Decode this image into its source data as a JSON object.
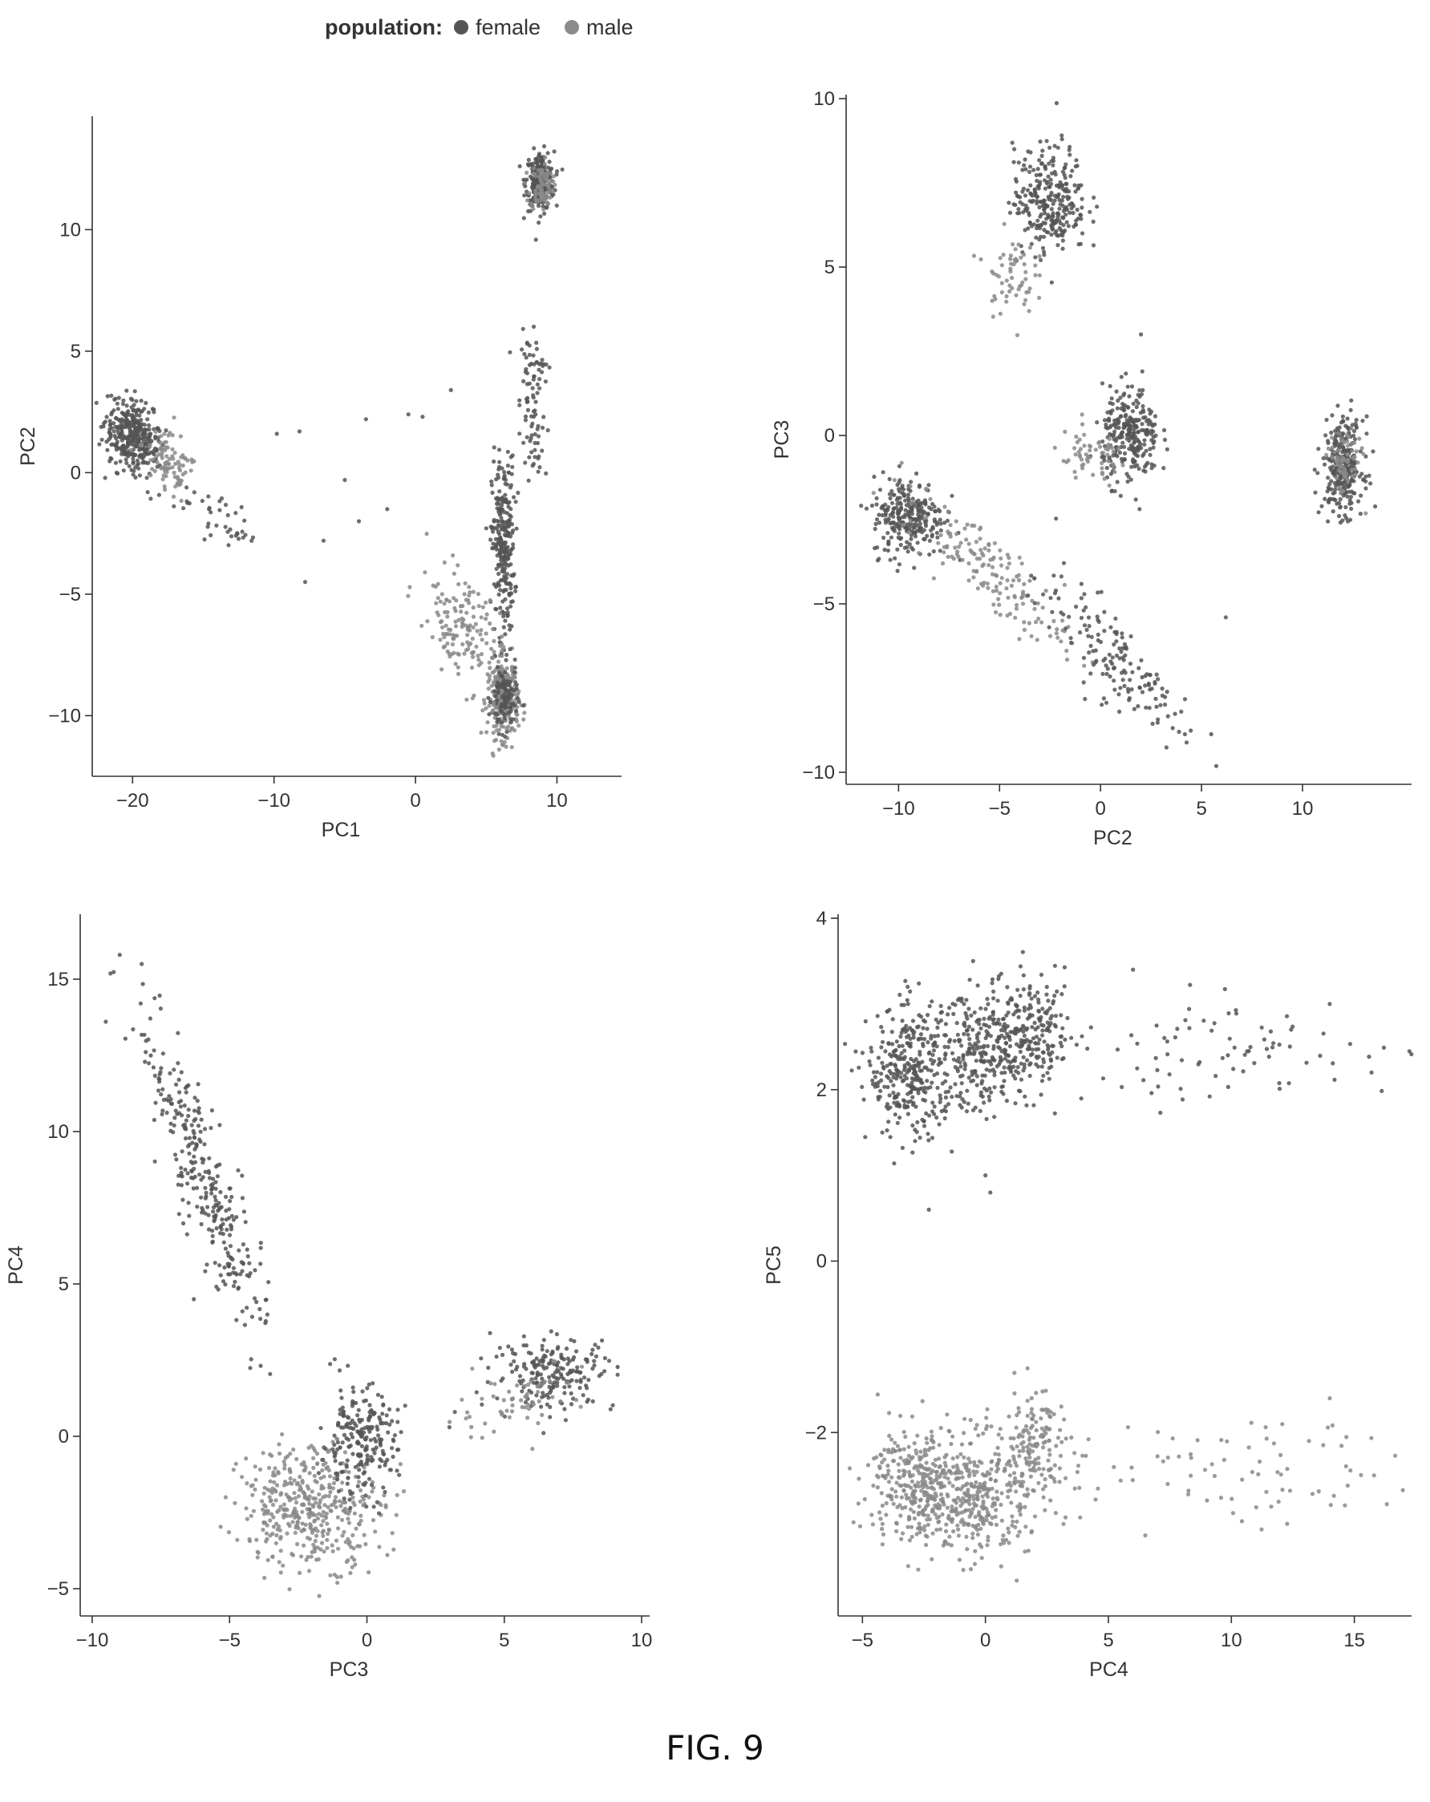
{
  "legend": {
    "title": "population:",
    "entries": [
      {
        "label": "female",
        "color": "#555555"
      },
      {
        "label": "male",
        "color": "#8a8a8a"
      }
    ]
  },
  "caption": "FIG. 9",
  "chart_data": [
    {
      "type": "scatter",
      "xlabel": "PC1",
      "ylabel": "PC2",
      "xlim": [
        -22,
        14
      ],
      "ylim": [
        -12,
        14.5
      ],
      "xticks": [
        -20,
        -10,
        0,
        10
      ],
      "yticks": [
        -10,
        -5,
        0,
        5,
        10
      ],
      "clusters": [
        {
          "series": "female",
          "cx": -20,
          "cy": 1.5,
          "sx": 1.0,
          "sy": 0.7,
          "n": 350,
          "theta": -25
        },
        {
          "series": "male",
          "cx": -17.5,
          "cy": 0.3,
          "sx": 1.0,
          "sy": 0.6,
          "n": 90,
          "theta": -25
        },
        {
          "series": "female",
          "cx": 8.8,
          "cy": 12,
          "sx": 0.5,
          "sy": 0.6,
          "n": 240,
          "theta": 0
        },
        {
          "series": "male",
          "cx": 8.9,
          "cy": 11.8,
          "sx": 0.4,
          "sy": 0.5,
          "n": 80,
          "theta": 0
        },
        {
          "series": "female",
          "cx": 6.2,
          "cy": -3,
          "sx": 0.4,
          "sy": 1.8,
          "n": 260,
          "theta": 0
        },
        {
          "series": "male",
          "cx": 6.2,
          "cy": -9.3,
          "sx": 0.55,
          "sy": 0.8,
          "n": 260,
          "theta": 0
        },
        {
          "series": "female",
          "cx": 6.3,
          "cy": -9.3,
          "sx": 0.45,
          "sy": 0.7,
          "n": 110,
          "theta": 0
        },
        {
          "series": "male",
          "cx": 3.2,
          "cy": -6.2,
          "sx": 1.4,
          "sy": 1.0,
          "n": 150,
          "theta": -40
        },
        {
          "series": "female",
          "cx": 8.2,
          "cy": 2.3,
          "sx": 0.4,
          "sy": 1.8,
          "n": 70,
          "theta": 10
        },
        {
          "series": "female",
          "cx": 8.8,
          "cy": 4.5,
          "sx": 0.3,
          "sy": 0.4,
          "n": 20,
          "theta": 0
        },
        {
          "series": "female",
          "cx": -14,
          "cy": -1.8,
          "sx": 1.5,
          "sy": 0.5,
          "n": 40,
          "theta": -20
        }
      ],
      "extra_points": [
        {
          "series": "female",
          "points": [
            [
              -9.8,
              1.6
            ],
            [
              -8.2,
              1.7
            ],
            [
              -6.5,
              -2.8
            ],
            [
              -7.8,
              -4.5
            ],
            [
              -5,
              -0.3
            ],
            [
              -3.5,
              2.2
            ],
            [
              -0.5,
              2.4
            ],
            [
              0.5,
              2.3
            ],
            [
              -4,
              -2
            ],
            [
              -2,
              -1.5
            ],
            [
              2.5,
              3.4
            ]
          ]
        }
      ]
    },
    {
      "type": "scatter",
      "xlabel": "PC2",
      "ylabel": "PC3",
      "xlim": [
        -12,
        15
      ],
      "ylim": [
        -10,
        10
      ],
      "xticks": [
        -10,
        -5,
        0,
        5,
        10
      ],
      "yticks": [
        -10,
        -5,
        0,
        5,
        10
      ],
      "clusters": [
        {
          "series": "female",
          "cx": -9.5,
          "cy": -2.4,
          "sx": 0.9,
          "sy": 0.6,
          "n": 260,
          "theta": 0
        },
        {
          "series": "male",
          "cx": -5.5,
          "cy": -4,
          "sx": 2.2,
          "sy": 0.5,
          "n": 160,
          "theta": -28
        },
        {
          "series": "female",
          "cx": 0.5,
          "cy": -6.5,
          "sx": 2.2,
          "sy": 0.6,
          "n": 160,
          "theta": -30
        },
        {
          "series": "female",
          "cx": -2.5,
          "cy": 7,
          "sx": 0.9,
          "sy": 0.8,
          "n": 280,
          "theta": 0
        },
        {
          "series": "male",
          "cx": -4.5,
          "cy": 4.8,
          "sx": 0.6,
          "sy": 0.6,
          "n": 60,
          "theta": 0
        },
        {
          "series": "female",
          "cx": 1.5,
          "cy": 0,
          "sx": 0.7,
          "sy": 0.7,
          "n": 260,
          "theta": 0
        },
        {
          "series": "male",
          "cx": -0.5,
          "cy": -0.7,
          "sx": 1.0,
          "sy": 0.4,
          "n": 60,
          "theta": 0
        },
        {
          "series": "female",
          "cx": 12,
          "cy": -0.9,
          "sx": 0.5,
          "sy": 0.7,
          "n": 280,
          "theta": 0
        },
        {
          "series": "male",
          "cx": 12.1,
          "cy": -0.8,
          "sx": 0.4,
          "sy": 0.5,
          "n": 70,
          "theta": 0
        }
      ],
      "extra_points": [
        {
          "series": "female",
          "points": [
            [
              6.2,
              -5.4
            ],
            [
              2,
              3
            ],
            [
              -0.9,
              6
            ]
          ]
        }
      ]
    },
    {
      "type": "scatter",
      "xlabel": "PC3",
      "ylabel": "PC4",
      "xlim": [
        -10,
        10
      ],
      "ylim": [
        -5.5,
        17
      ],
      "xticks": [
        -10,
        -5,
        0,
        5,
        10
      ],
      "yticks": [
        -5,
        0,
        5,
        10,
        15
      ],
      "clusters": [
        {
          "series": "female",
          "cx": -6,
          "cy": 8.5,
          "sx": 2.7,
          "sy": 0.5,
          "n": 300,
          "theta": -68
        },
        {
          "series": "male",
          "cx": -2,
          "cy": -2.3,
          "sx": 1.3,
          "sy": 1.0,
          "n": 420,
          "theta": 0
        },
        {
          "series": "female",
          "cx": -0.3,
          "cy": -0.2,
          "sx": 0.7,
          "sy": 0.9,
          "n": 220,
          "theta": 0
        },
        {
          "series": "female",
          "cx": 6.8,
          "cy": 2.1,
          "sx": 1.1,
          "sy": 0.6,
          "n": 200,
          "theta": 0
        },
        {
          "series": "male",
          "cx": 5.5,
          "cy": 1.2,
          "sx": 1.2,
          "sy": 0.5,
          "n": 60,
          "theta": 15
        }
      ],
      "extra_points": [
        {
          "series": "female",
          "points": [
            [
              -9,
              15.8
            ],
            [
              -8.2,
              15.5
            ],
            [
              3,
              0.3
            ],
            [
              3.2,
              0.8
            ],
            [
              -4.5,
              6.3
            ],
            [
              -6.3,
              4.5
            ]
          ]
        }
      ]
    },
    {
      "type": "scatter",
      "xlabel": "PC4",
      "ylabel": "PC5",
      "xlim": [
        -5.5,
        17
      ],
      "ylim": [
        -4,
        4
      ],
      "xticks": [
        -5,
        0,
        5,
        10,
        15
      ],
      "yticks": [
        -2,
        0,
        2,
        4
      ],
      "clusters": [
        {
          "series": "female",
          "cx": -3,
          "cy": 2.2,
          "sx": 0.9,
          "sy": 0.38,
          "n": 330,
          "theta": 0
        },
        {
          "series": "female",
          "cx": 0.2,
          "cy": 2.45,
          "sx": 1.1,
          "sy": 0.35,
          "n": 300,
          "theta": 0
        },
        {
          "series": "female",
          "cx": 2.2,
          "cy": 2.7,
          "sx": 0.7,
          "sy": 0.3,
          "n": 140,
          "theta": 0
        },
        {
          "series": "female",
          "cx": 10,
          "cy": 2.45,
          "sx": 3.5,
          "sy": 0.3,
          "n": 80,
          "theta": 0
        },
        {
          "series": "male",
          "cx": -2.8,
          "cy": -2.6,
          "sx": 1.0,
          "sy": 0.35,
          "n": 330,
          "theta": 0
        },
        {
          "series": "male",
          "cx": -0.2,
          "cy": -2.75,
          "sx": 1.0,
          "sy": 0.35,
          "n": 300,
          "theta": 0
        },
        {
          "series": "male",
          "cx": 2,
          "cy": -2.2,
          "sx": 0.8,
          "sy": 0.35,
          "n": 150,
          "theta": 0
        },
        {
          "series": "male",
          "cx": 10,
          "cy": -2.45,
          "sx": 3.5,
          "sy": 0.3,
          "n": 80,
          "theta": 0
        }
      ],
      "extra_points": [
        {
          "series": "female",
          "points": [
            [
              -2.3,
              0.6
            ],
            [
              0.2,
              0.8
            ],
            [
              0,
              1
            ],
            [
              6,
              3.4
            ],
            [
              -0.5,
              3.5
            ],
            [
              15.7,
              2.2
            ],
            [
              14,
              3
            ]
          ]
        },
        {
          "series": "male",
          "points": [
            [
              15.8,
              -2.5
            ],
            [
              14,
              -1.6
            ],
            [
              6.5,
              -3.2
            ]
          ]
        }
      ]
    }
  ]
}
